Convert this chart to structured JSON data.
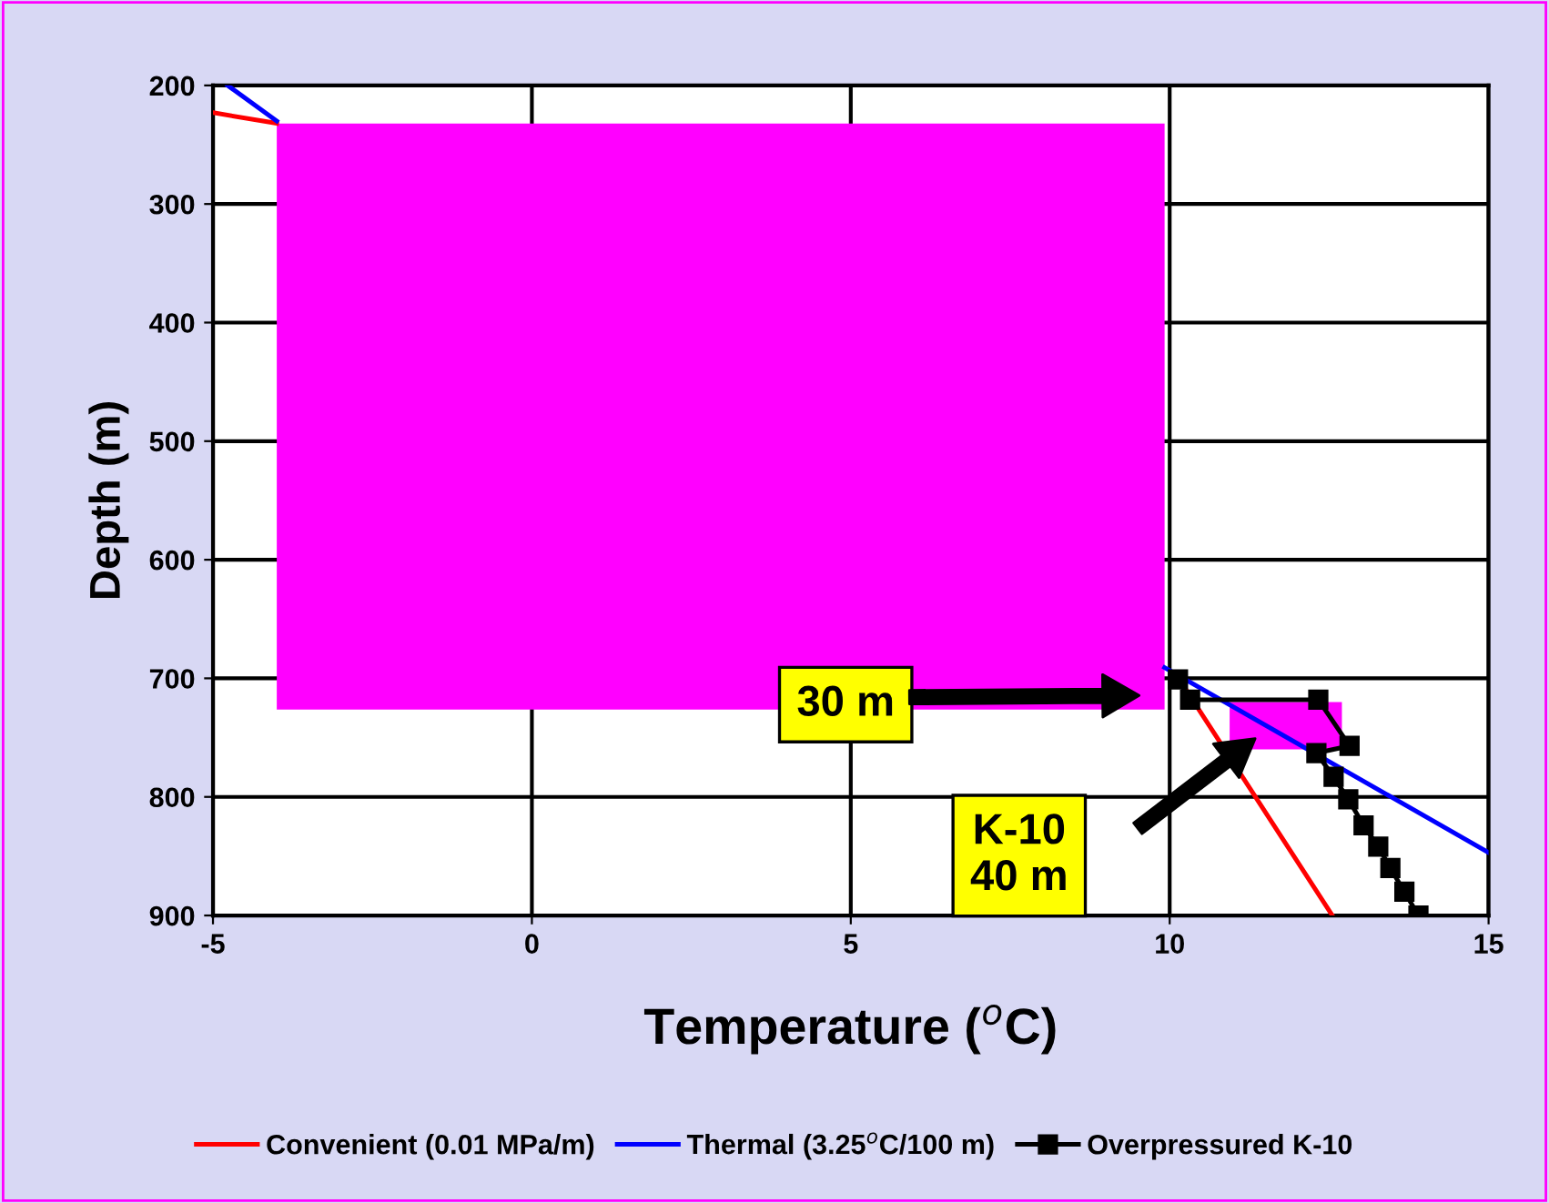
{
  "chart_data": {
    "type": "line",
    "xlabel": "Temperature ($^{o}$C)",
    "ylabel": "Depth (m)",
    "xlim": [
      -5,
      15
    ],
    "xticks": [
      -5,
      0,
      5,
      10,
      15
    ],
    "ylim": [
      900,
      200
    ],
    "yticks": [
      200,
      300,
      400,
      500,
      600,
      700,
      800,
      900
    ],
    "grid": true,
    "legend": "bottom",
    "line_style": "solid",
    "series": [
      {
        "name": "Convenient (0.01 MPa/m)",
        "color": "#ff0000",
        "marker": "none",
        "x": [
          -5,
          -4,
          0,
          10.2,
          12.55
        ],
        "values": [
          223,
          232,
          null,
          705,
          900
        ]
      },
      {
        "name": "Thermal (3.25$^{o}$C/100 m)",
        "color": "#0000ff",
        "marker": "none",
        "x": [
          -4.77,
          -4,
          0,
          9.92,
          15
        ],
        "values": [
          200,
          230,
          null,
          691,
          847
        ]
      },
      {
        "name": "Overpressured K-10",
        "color": "#000000",
        "marker": "square",
        "x": [
          10.13,
          10.32,
          12.33,
          12.82,
          12.3,
          12.57,
          12.8,
          13.04,
          13.27,
          13.46,
          13.68,
          13.9
        ],
        "values": [
          701,
          718,
          718,
          757,
          763,
          783,
          802,
          824,
          842,
          860,
          880,
          900
        ]
      }
    ],
    "annotations": [
      "30 m",
      "K-10\n40 m"
    ]
  }
}
